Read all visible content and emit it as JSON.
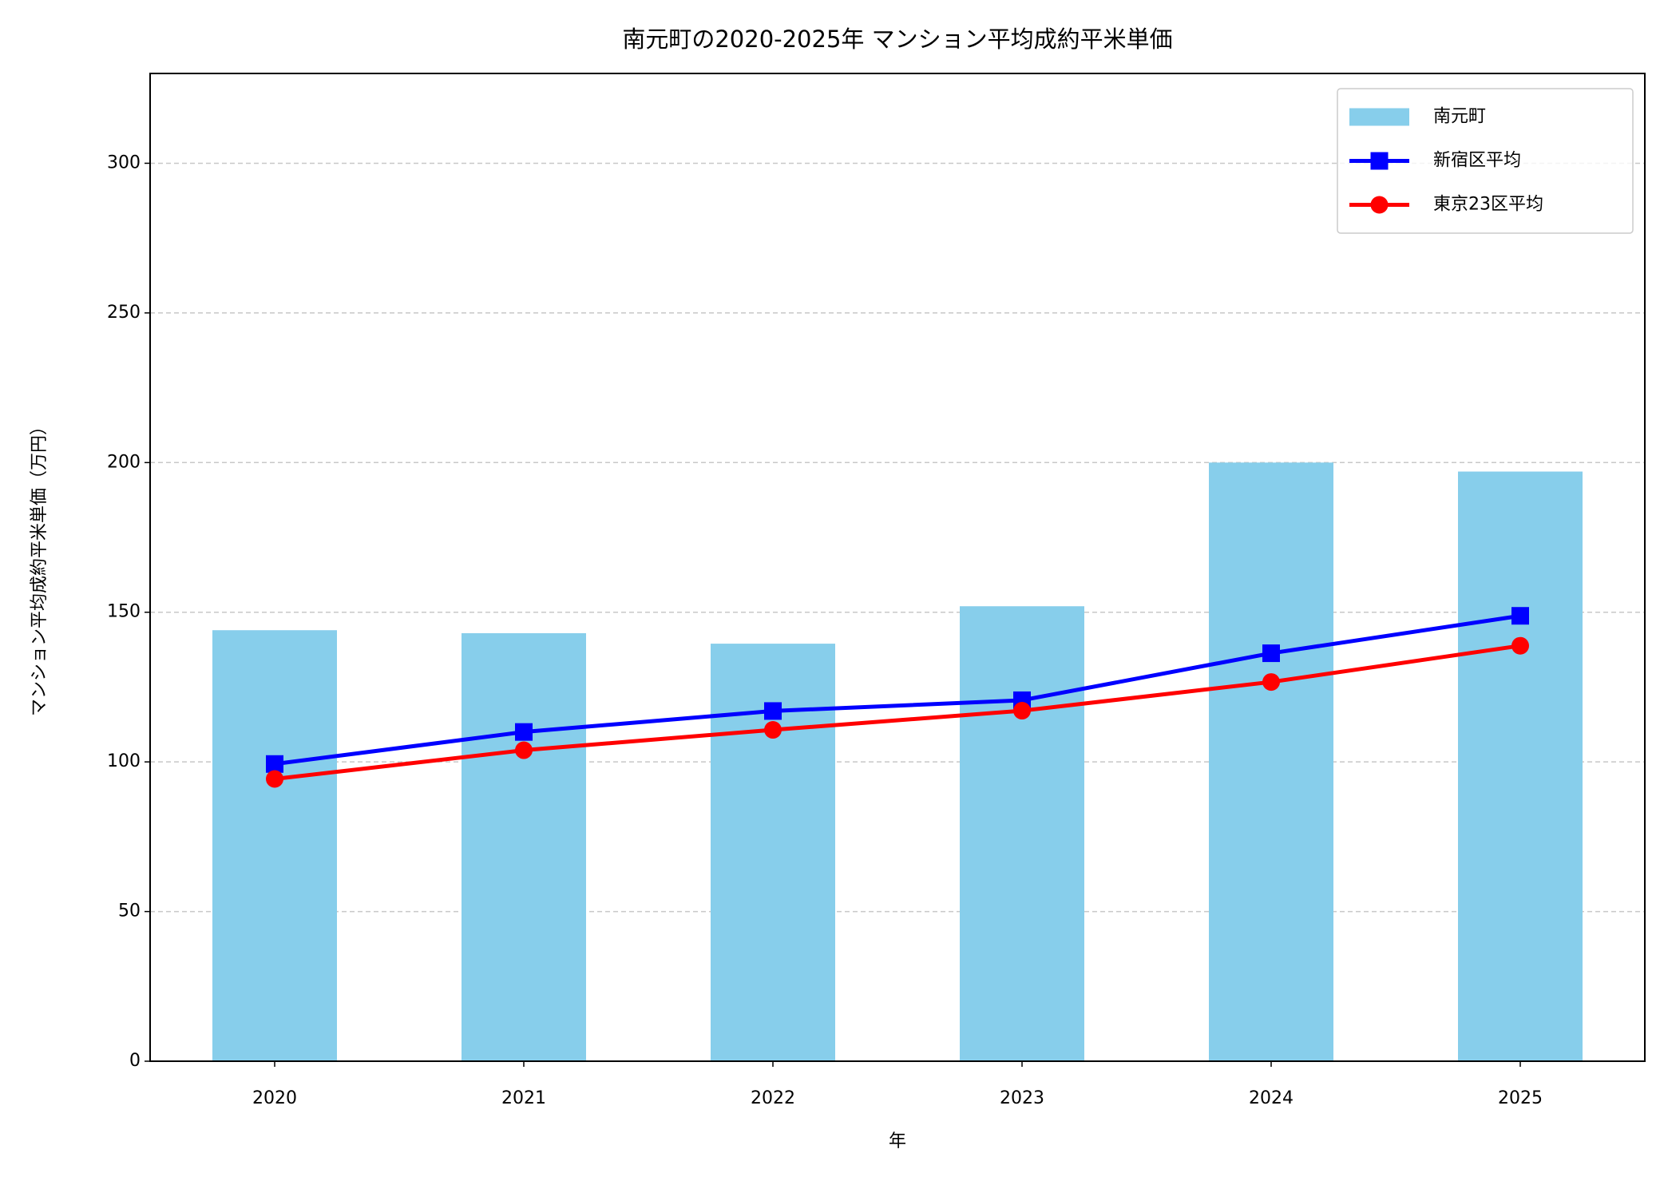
{
  "chart_data": {
    "type": "bar-line",
    "title": "南元町の2020-2025年 マンション平均成約平米単価",
    "x_label": "年",
    "y_label": "マンション平均成約平米単価（万円）",
    "categories": [
      "2020",
      "2021",
      "2022",
      "2023",
      "2024",
      "2025"
    ],
    "series": [
      {
        "name": "南元町",
        "type": "bar",
        "color": "#87ceeb",
        "values": [
          144,
          143,
          139.5,
          152,
          200,
          197
        ]
      },
      {
        "name": "新宿区平均",
        "type": "line",
        "marker": "square",
        "color": "#0000ff",
        "values": [
          99.3,
          110,
          117,
          120.6,
          136.3,
          148.8
        ]
      },
      {
        "name": "東京23区平均",
        "type": "line",
        "marker": "circle",
        "color": "#ff0000",
        "values": [
          94.3,
          103.9,
          110.7,
          117.1,
          126.7,
          138.8
        ]
      }
    ],
    "ylim": [
      0,
      330
    ],
    "yticks": [
      0,
      50,
      100,
      150,
      200,
      250,
      300
    ],
    "grid": true,
    "legend": "upper-right"
  }
}
